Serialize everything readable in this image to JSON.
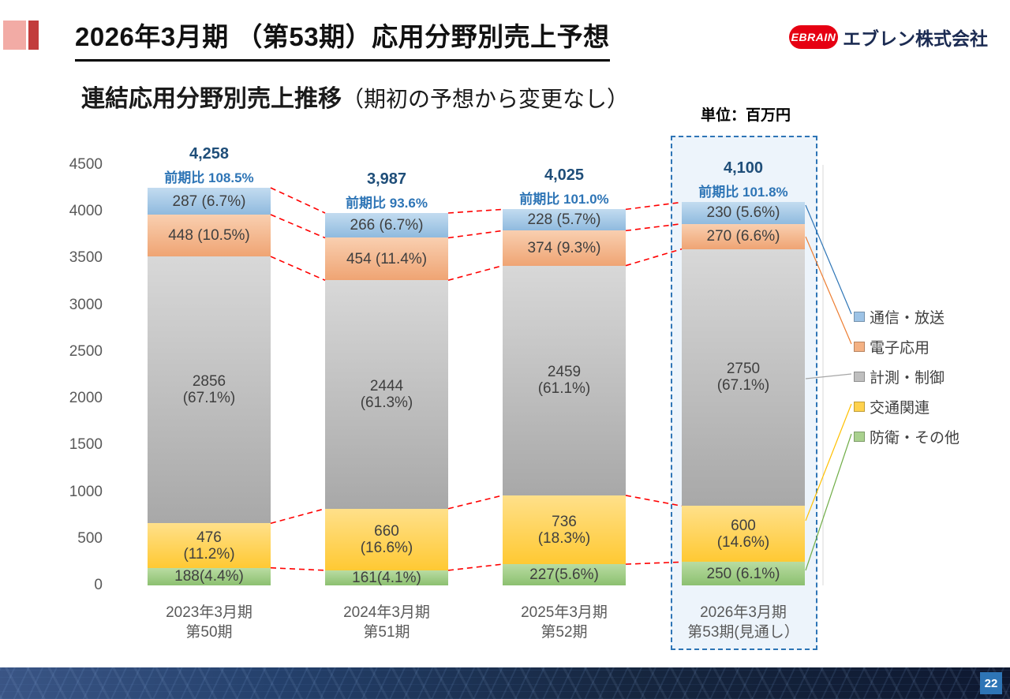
{
  "slide": {
    "title": "2026年3月期 （第53期）応用分野別売上予想",
    "logo_badge": "EBRAIN",
    "logo_company": "エブレン株式会社",
    "subtitle_bold": "連結応用分野別売上推移",
    "subtitle_normal": "（期初の予想から変更なし）",
    "unit_label": "単位：百万円",
    "page_number": "22"
  },
  "chart_data": {
    "type": "bar",
    "stacked": true,
    "title": "連結応用分野別売上推移（期初の予想から変更なし）",
    "unit": "百万円",
    "ylim": [
      0,
      4500
    ],
    "yticks": [
      0,
      500,
      1000,
      1500,
      2000,
      2500,
      3000,
      3500,
      4000,
      4500
    ],
    "categories": [
      [
        "2023年3月期",
        "第50期"
      ],
      [
        "2024年3月期",
        "第51期"
      ],
      [
        "2025年3月期",
        "第52期"
      ],
      [
        "2026年3月期",
        "第53期(見通し）"
      ]
    ],
    "totals": [
      "4,258",
      "3,987",
      "4,025",
      "4,100"
    ],
    "yoy": [
      "前期比 108.5%",
      "前期比 93.6%",
      "前期比 101.0%",
      "前期比 101.8%"
    ],
    "highlight_column": 3,
    "series": [
      {
        "name": "防衛・その他",
        "color_top": "#B9DCA2",
        "color_bottom": "#8CC070",
        "values": [
          188,
          161,
          227,
          250
        ],
        "labels": [
          [
            "188(4.4%)"
          ],
          [
            "161(4.1%)"
          ],
          [
            "227(5.6%)"
          ],
          [
            "250 (6.1%)"
          ]
        ]
      },
      {
        "name": "交通関連",
        "color_top": "#FFE08A",
        "color_bottom": "#FFC933",
        "values": [
          476,
          660,
          736,
          600
        ],
        "labels": [
          [
            "476",
            "(11.2%)"
          ],
          [
            "660",
            "(16.6%)"
          ],
          [
            "736",
            "(18.3%)"
          ],
          [
            "600",
            "(14.6%)"
          ]
        ]
      },
      {
        "name": "計測・制御",
        "color_top": "#D8D8D8",
        "color_bottom": "#A8A8A8",
        "values": [
          2856,
          2444,
          2459,
          2750
        ],
        "labels": [
          [
            "2856",
            "(67.1%)"
          ],
          [
            "2444",
            "(61.3%)"
          ],
          [
            "2459",
            "(61.1%)"
          ],
          [
            "2750",
            "(67.1%)"
          ]
        ]
      },
      {
        "name": "電子応用",
        "color_top": "#F9CFB0",
        "color_bottom": "#EFA473",
        "values": [
          448,
          454,
          374,
          270
        ],
        "labels": [
          [
            "448 (10.5%)"
          ],
          [
            "454 (11.4%)"
          ],
          [
            "374 (9.3%)"
          ],
          [
            "270 (6.6%)"
          ]
        ]
      },
      {
        "name": "通信・放送",
        "color_top": "#C3DCF0",
        "color_bottom": "#8FBADE",
        "values": [
          287,
          266,
          228,
          230
        ],
        "labels": [
          [
            "287 (6.7%)"
          ],
          [
            "266 (6.7%)"
          ],
          [
            "228 (5.7%)"
          ],
          [
            "230 (5.6%)"
          ]
        ]
      }
    ],
    "legend": [
      {
        "label": "通信・放送",
        "color": "#9DC3E6"
      },
      {
        "label": "電子応用",
        "color": "#F4B183"
      },
      {
        "label": "計測・制御",
        "color": "#BFBFBF"
      },
      {
        "label": "交通関連",
        "color": "#FFD24D"
      },
      {
        "label": "防衛・その他",
        "color": "#A9D18E"
      }
    ],
    "connector_color": "#FF0000",
    "legend_line_colors": [
      "#2E75B6",
      "#ED7D31",
      "#A6A6A6",
      "#FFC000",
      "#70AD47"
    ],
    "colors": {
      "total_label": "#1F4E79",
      "yoy_label": "#2E75B6",
      "axis_text": "#595959",
      "segment_text": "#3F3F3F",
      "highlight_border": "#2E75B6",
      "highlight_fill": "#DEEBF7"
    }
  }
}
